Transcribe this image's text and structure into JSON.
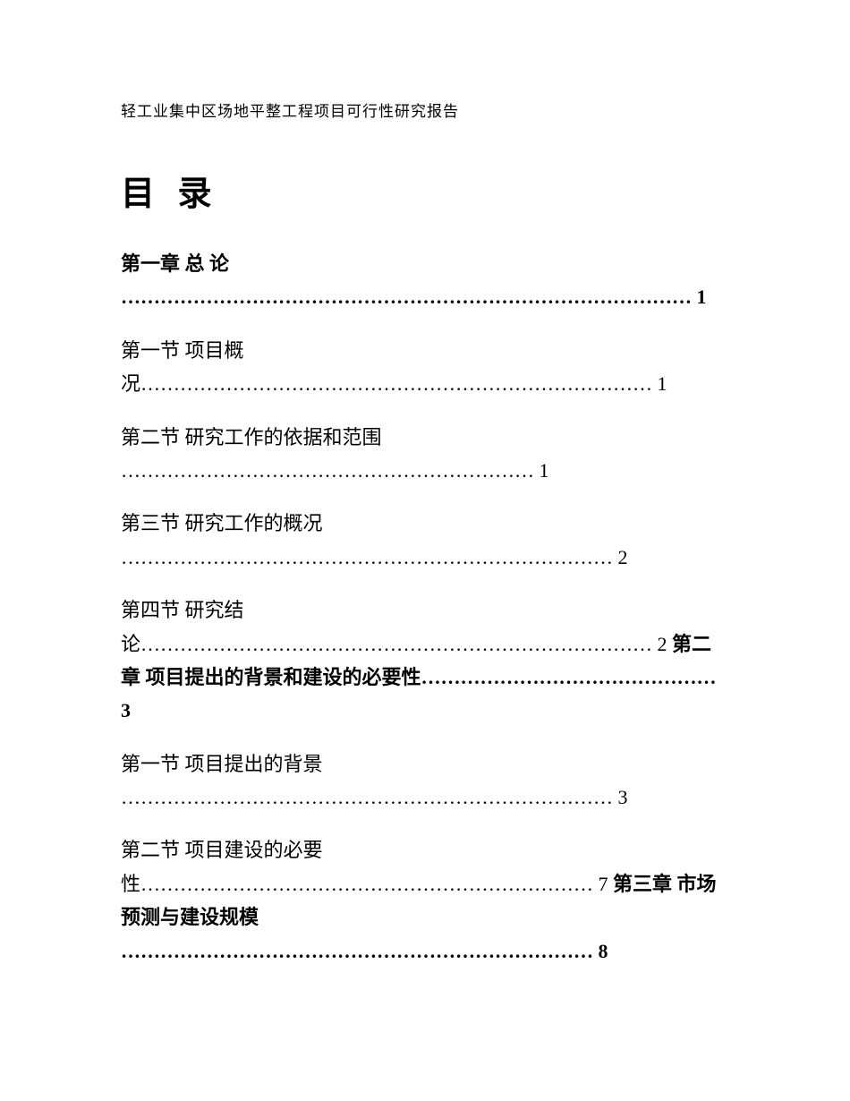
{
  "header": {
    "title": "轻工业集中区场地平整工程项目可行性研究报告"
  },
  "toc": {
    "heading": "目 录",
    "entries": [
      {
        "text": "第一章 总 论 …………………………………………………………………………… 1",
        "bold": true
      },
      {
        "text": "第一节 项目概况…………………………………………………………………… 1",
        "bold": false
      },
      {
        "text": "第二节 研究工作的依据和范围 ……………………………………………………… 1",
        "bold": false
      },
      {
        "text": "第三节 研究工作的概况 ………………………………………………………………… 2",
        "bold": false
      },
      {
        "text": "第四节 研究结论…………………………………………………………………… 2 第二章 项目提出的背景和建设的必要性……………………………………… 3",
        "bold": false
      },
      {
        "text": "第一节 项目提出的背景 ………………………………………………………………… 3",
        "bold": false
      },
      {
        "text": "第二节 项目建设的必要性…………………………………………………………… 7 第三章 市场预测与建设规模 ……………………………………………………………… 8",
        "bold": false
      }
    ]
  },
  "style": {
    "page_bg": "#ffffff",
    "text_color": "#000000",
    "header_fontsize": 17,
    "toc_title_fontsize": 38,
    "entry_fontsize": 22,
    "line_height": 1.7
  }
}
